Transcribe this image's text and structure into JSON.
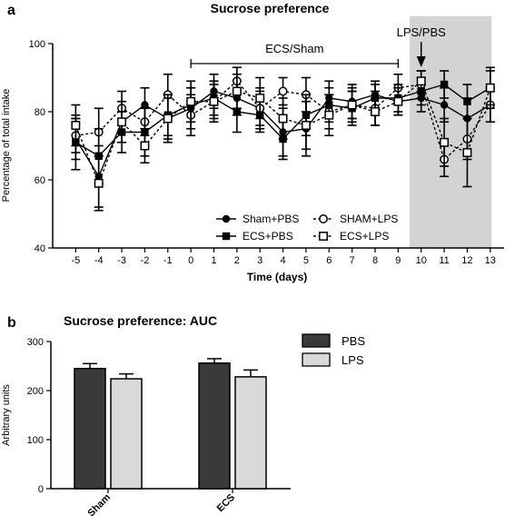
{
  "chart_data": [
    {
      "panel_label": "a",
      "type": "line",
      "title": "Sucrose preference",
      "xlabel": "Time (days)",
      "ylabel": "Percentage of total intake",
      "ylim": [
        40,
        100
      ],
      "yticks": [
        40,
        60,
        80,
        100
      ],
      "x": [
        -5,
        -4,
        -3,
        -2,
        -1,
        0,
        1,
        2,
        3,
        4,
        5,
        6,
        7,
        8,
        9,
        10,
        11,
        12,
        13
      ],
      "legend_position": "bottom-right",
      "annotations": {
        "bracket_label": "ECS/Sham",
        "bracket_range": [
          0,
          9
        ],
        "arrow_label": "LPS/PBS",
        "arrow_day": 10,
        "shaded_range": [
          10,
          13
        ]
      },
      "series": [
        {
          "name": "Sham+PBS",
          "marker": "filled-circle",
          "line": "solid",
          "values": [
            72,
            61,
            77,
            82,
            78,
            81,
            86,
            84,
            81,
            74,
            75,
            84,
            83,
            85,
            83,
            84,
            82,
            78,
            82
          ],
          "errors": [
            6,
            9,
            6,
            5,
            6,
            6,
            5,
            5,
            5,
            7,
            8,
            5,
            5,
            4,
            4,
            4,
            5,
            6,
            5
          ]
        },
        {
          "name": "SHAM+LPS",
          "marker": "open-circle",
          "line": "dashed",
          "values": [
            73,
            74,
            81,
            77,
            85,
            79,
            83,
            89,
            81,
            86,
            85,
            80,
            82,
            81,
            87,
            88,
            66,
            72,
            82
          ],
          "errors": [
            5,
            7,
            5,
            4,
            6,
            6,
            5,
            4,
            6,
            4,
            5,
            5,
            4,
            5,
            4,
            4,
            5,
            6,
            5
          ]
        },
        {
          "name": "ECS+PBS",
          "marker": "filled-square",
          "line": "solid",
          "values": [
            71,
            67,
            74,
            74,
            79,
            82,
            84,
            80,
            79,
            72,
            79,
            82,
            81,
            84,
            84,
            86,
            88,
            83,
            87
          ],
          "errors": [
            8,
            8,
            6,
            7,
            6,
            5,
            5,
            6,
            5,
            6,
            6,
            5,
            5,
            4,
            4,
            4,
            4,
            5,
            5
          ]
        },
        {
          "name": "ECS+LPS",
          "marker": "open-square",
          "line": "dashed",
          "values": [
            76,
            59,
            77,
            70,
            78,
            83,
            83,
            86,
            84,
            78,
            76,
            79,
            82,
            80,
            83,
            89,
            71,
            68,
            87
          ],
          "errors": [
            6,
            8,
            6,
            5,
            7,
            6,
            6,
            5,
            6,
            6,
            7,
            6,
            5,
            4,
            4,
            3,
            7,
            10,
            6
          ]
        }
      ]
    },
    {
      "panel_label": "b",
      "type": "bar",
      "title": "Sucrose preference: AUC",
      "xlabel": "",
      "ylabel": "Arbitrary units",
      "ylim": [
        0,
        300
      ],
      "yticks": [
        0,
        100,
        200,
        300
      ],
      "categories": [
        "Sham",
        "ECS"
      ],
      "legend_position": "top-right",
      "series": [
        {
          "name": "PBS",
          "color": "#3a3a3a",
          "values": [
            245,
            256
          ],
          "errors": [
            10,
            9
          ]
        },
        {
          "name": "LPS",
          "color": "#d9d9d9",
          "values": [
            224,
            228
          ],
          "errors": [
            10,
            14
          ]
        }
      ]
    }
  ]
}
